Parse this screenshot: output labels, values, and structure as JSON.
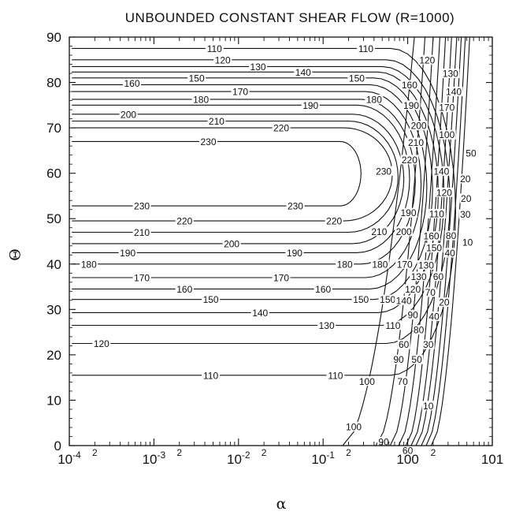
{
  "chart_data": {
    "type": "contour",
    "title": "UNBOUNDED CONSTANT SHEAR FLOW (R=1000)",
    "xlabel": "α",
    "ylabel": "Θ",
    "xscale": "log",
    "xlim": [
      0.0001,
      10
    ],
    "ylim": [
      0,
      90
    ],
    "x_ticks": [
      "10-4",
      "10-3",
      "10-2",
      "10-1",
      "100",
      "101"
    ],
    "x_minor_labels": [
      "2",
      "2",
      "2",
      "2",
      "2"
    ],
    "y_ticks": [
      "0",
      "10",
      "20",
      "30",
      "40",
      "50",
      "60",
      "70",
      "80",
      "90"
    ],
    "grid": false,
    "contour_levels": [
      10,
      20,
      30,
      40,
      50,
      60,
      70,
      80,
      90,
      100,
      110,
      120,
      130,
      140,
      150,
      160,
      170,
      180,
      190,
      200,
      210,
      220,
      230
    ],
    "labels_on_plot": [
      {
        "text": "110",
        "x": 0.0052,
        "y": 87.5
      },
      {
        "text": "110",
        "x": 0.32,
        "y": 87.5
      },
      {
        "text": "120",
        "x": 0.0065,
        "y": 85
      },
      {
        "text": "120",
        "x": 1.7,
        "y": 85
      },
      {
        "text": "130",
        "x": 0.017,
        "y": 83.5
      },
      {
        "text": "130",
        "x": 3.2,
        "y": 82
      },
      {
        "text": "140",
        "x": 0.058,
        "y": 82.3
      },
      {
        "text": "150",
        "x": 0.0032,
        "y": 81
      },
      {
        "text": "150",
        "x": 0.25,
        "y": 81
      },
      {
        "text": "160",
        "x": 0.00055,
        "y": 79.8
      },
      {
        "text": "160",
        "x": 1.05,
        "y": 79.5
      },
      {
        "text": "140",
        "x": 3.5,
        "y": 78
      },
      {
        "text": "170",
        "x": 0.0105,
        "y": 78
      },
      {
        "text": "180",
        "x": 0.0036,
        "y": 76.3
      },
      {
        "text": "180",
        "x": 0.4,
        "y": 76.3
      },
      {
        "text": "190",
        "x": 0.071,
        "y": 75
      },
      {
        "text": "190",
        "x": 1.1,
        "y": 75
      },
      {
        "text": "170",
        "x": 2.9,
        "y": 74.5
      },
      {
        "text": "200",
        "x": 0.0005,
        "y": 73
      },
      {
        "text": "210",
        "x": 0.0055,
        "y": 71.5
      },
      {
        "text": "220",
        "x": 0.032,
        "y": 70
      },
      {
        "text": "200",
        "x": 1.35,
        "y": 70.5
      },
      {
        "text": "100",
        "x": 2.9,
        "y": 68.5
      },
      {
        "text": "230",
        "x": 0.0044,
        "y": 67
      },
      {
        "text": "210",
        "x": 1.25,
        "y": 66.8
      },
      {
        "text": "220",
        "x": 1.05,
        "y": 63
      },
      {
        "text": "50",
        "x": 5.6,
        "y": 64.5
      },
      {
        "text": "230",
        "x": 0.52,
        "y": 60.5
      },
      {
        "text": "140",
        "x": 2.5,
        "y": 60.5
      },
      {
        "text": "20",
        "x": 4.8,
        "y": 58.8
      },
      {
        "text": "120",
        "x": 2.7,
        "y": 55.8
      },
      {
        "text": "20",
        "x": 4.9,
        "y": 54.5
      },
      {
        "text": "230",
        "x": 0.00072,
        "y": 52.8
      },
      {
        "text": "230",
        "x": 0.047,
        "y": 52.8
      },
      {
        "text": "190",
        "x": 1.02,
        "y": 51.3
      },
      {
        "text": "110",
        "x": 2.2,
        "y": 51.1
      },
      {
        "text": "30",
        "x": 4.8,
        "y": 51
      },
      {
        "text": "220",
        "x": 0.0023,
        "y": 49.5
      },
      {
        "text": "220",
        "x": 0.135,
        "y": 49.5
      },
      {
        "text": "210",
        "x": 0.00072,
        "y": 47
      },
      {
        "text": "210",
        "x": 0.46,
        "y": 47.2
      },
      {
        "text": "200",
        "x": 0.9,
        "y": 47.2
      },
      {
        "text": "160",
        "x": 1.9,
        "y": 46.2
      },
      {
        "text": "80",
        "x": 3.25,
        "y": 46.3
      },
      {
        "text": "10",
        "x": 5.1,
        "y": 44.8
      },
      {
        "text": "200",
        "x": 0.0083,
        "y": 44.5
      },
      {
        "text": "150",
        "x": 2.05,
        "y": 43.6
      },
      {
        "text": "40",
        "x": 3.15,
        "y": 42.5
      },
      {
        "text": "190",
        "x": 0.00049,
        "y": 42.5
      },
      {
        "text": "190",
        "x": 0.046,
        "y": 42.5
      },
      {
        "text": "180",
        "x": 0.00017,
        "y": 40
      },
      {
        "text": "180",
        "x": 0.18,
        "y": 40
      },
      {
        "text": "180",
        "x": 0.47,
        "y": 40
      },
      {
        "text": "170",
        "x": 0.92,
        "y": 40
      },
      {
        "text": "130",
        "x": 1.65,
        "y": 39.8
      },
      {
        "text": "170",
        "x": 0.00072,
        "y": 37
      },
      {
        "text": "170",
        "x": 0.032,
        "y": 37
      },
      {
        "text": "130",
        "x": 1.35,
        "y": 37.3
      },
      {
        "text": "60",
        "x": 2.3,
        "y": 37.3
      },
      {
        "text": "160",
        "x": 0.0023,
        "y": 34.5
      },
      {
        "text": "160",
        "x": 0.1,
        "y": 34.5
      },
      {
        "text": "120",
        "x": 1.15,
        "y": 34.5
      },
      {
        "text": "70",
        "x": 1.85,
        "y": 33.8
      },
      {
        "text": "150",
        "x": 0.0047,
        "y": 32.2
      },
      {
        "text": "150",
        "x": 0.28,
        "y": 32.2
      },
      {
        "text": "150",
        "x": 0.58,
        "y": 32.2
      },
      {
        "text": "140",
        "x": 0.9,
        "y": 32
      },
      {
        "text": "20",
        "x": 2.7,
        "y": 31.6
      },
      {
        "text": "140",
        "x": 0.018,
        "y": 29.3
      },
      {
        "text": "90",
        "x": 1.15,
        "y": 28.8
      },
      {
        "text": "40",
        "x": 2.05,
        "y": 28.5
      },
      {
        "text": "130",
        "x": 0.11,
        "y": 26.5
      },
      {
        "text": "110",
        "x": 0.67,
        "y": 26.5
      },
      {
        "text": "80",
        "x": 1.35,
        "y": 25.5
      },
      {
        "text": "120",
        "x": 0.00024,
        "y": 22.5
      },
      {
        "text": "60",
        "x": 0.9,
        "y": 22.3
      },
      {
        "text": "30",
        "x": 1.75,
        "y": 22.3
      },
      {
        "text": "90",
        "x": 0.78,
        "y": 19
      },
      {
        "text": "50",
        "x": 1.28,
        "y": 19
      },
      {
        "text": "110",
        "x": 0.0047,
        "y": 15.5
      },
      {
        "text": "110",
        "x": 0.14,
        "y": 15.5
      },
      {
        "text": "100",
        "x": 0.33,
        "y": 14.2
      },
      {
        "text": "70",
        "x": 0.87,
        "y": 14.2
      },
      {
        "text": "10",
        "x": 1.75,
        "y": 8.8
      },
      {
        "text": "100",
        "x": 0.23,
        "y": 4.2
      },
      {
        "text": "90",
        "x": 0.52,
        "y": 0.9
      },
      {
        "text": "60",
        "x": 1.0,
        "y": -1
      }
    ]
  }
}
